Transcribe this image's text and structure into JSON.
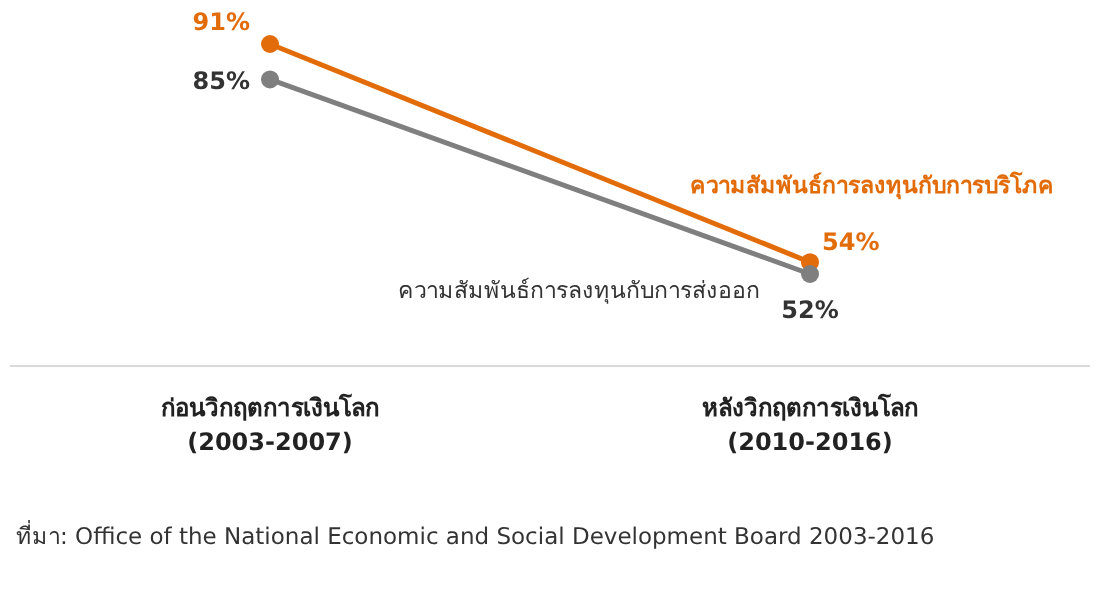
{
  "chart_data": {
    "type": "line",
    "categories": [
      "ก่อนวิกฤตการเงินโลก\n(2003-2007)",
      "หลังวิกฤตการเงินโลก\n(2010-2016)"
    ],
    "series": [
      {
        "name": "ความสัมพันธ์การลงทุนกับการบริโภค",
        "color": "#e36c0a",
        "values": [
          91,
          54
        ],
        "value_labels": [
          "91%",
          "54%"
        ]
      },
      {
        "name": "ความสัมพันธ์การลงทุนกับการส่งออก",
        "color": "#7f7f7f",
        "values": [
          85,
          52
        ],
        "value_labels": [
          "85%",
          "52%"
        ]
      }
    ],
    "marker": "circle",
    "annotations": [
      "ที่มา: Office of the National Economic and Social Development Board 2003-2016"
    ]
  }
}
